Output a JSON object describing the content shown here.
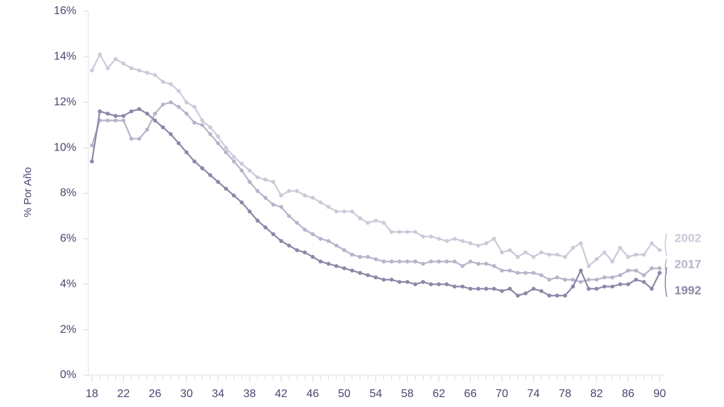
{
  "chart_data": {
    "type": "line",
    "ylabel": "% Por Año",
    "xlabel": "",
    "xlim": [
      18,
      90
    ],
    "ylim": [
      0,
      16
    ],
    "x_ticks": [
      18,
      22,
      26,
      30,
      34,
      38,
      42,
      46,
      50,
      54,
      58,
      62,
      66,
      70,
      74,
      78,
      82,
      86,
      90
    ],
    "y_ticks": [
      0,
      2,
      4,
      6,
      8,
      10,
      12,
      14,
      16
    ],
    "y_tick_labels": [
      "0%",
      "2%",
      "4%",
      "6%",
      "8%",
      "10%",
      "12%",
      "14%",
      "16%"
    ],
    "grid": false,
    "legend": "direct labels at right end of lines",
    "x": [
      18,
      19,
      20,
      21,
      22,
      23,
      24,
      25,
      26,
      27,
      28,
      29,
      30,
      31,
      32,
      33,
      34,
      35,
      36,
      37,
      38,
      39,
      40,
      41,
      42,
      43,
      44,
      45,
      46,
      47,
      48,
      49,
      50,
      51,
      52,
      53,
      54,
      55,
      56,
      57,
      58,
      59,
      60,
      61,
      62,
      63,
      64,
      65,
      66,
      67,
      68,
      69,
      70,
      71,
      72,
      73,
      74,
      75,
      76,
      77,
      78,
      79,
      80,
      81,
      82,
      83,
      84,
      85,
      86,
      87,
      88,
      89,
      90
    ],
    "series": [
      {
        "name": "2002",
        "color": "#cdc9d9",
        "values": [
          13.4,
          14.1,
          13.5,
          13.9,
          13.7,
          13.5,
          13.4,
          13.3,
          13.2,
          12.9,
          12.8,
          12.5,
          12.0,
          11.8,
          11.2,
          10.9,
          10.5,
          10.0,
          9.6,
          9.3,
          9.0,
          8.7,
          8.6,
          8.5,
          7.9,
          8.1,
          8.1,
          7.9,
          7.8,
          7.6,
          7.4,
          7.2,
          7.2,
          7.2,
          6.9,
          6.7,
          6.8,
          6.7,
          6.3,
          6.3,
          6.3,
          6.3,
          6.1,
          6.1,
          6.0,
          5.9,
          6.0,
          5.9,
          5.8,
          5.7,
          5.8,
          6.0,
          5.4,
          5.5,
          5.2,
          5.4,
          5.2,
          5.4,
          5.3,
          5.3,
          5.2,
          5.6,
          5.8,
          4.8,
          5.1,
          5.4,
          5.0,
          5.6,
          5.2,
          5.3,
          5.3,
          5.8,
          5.5
        ]
      },
      {
        "name": "2017",
        "color": "#b8b3ca",
        "values": [
          10.1,
          11.2,
          11.2,
          11.2,
          11.2,
          10.4,
          10.4,
          10.8,
          11.5,
          11.9,
          12.0,
          11.8,
          11.5,
          11.1,
          11.0,
          10.6,
          10.2,
          9.8,
          9.4,
          9.0,
          8.5,
          8.1,
          7.8,
          7.5,
          7.4,
          7.0,
          6.7,
          6.4,
          6.2,
          6.0,
          5.9,
          5.7,
          5.5,
          5.3,
          5.2,
          5.2,
          5.1,
          5.0,
          5.0,
          5.0,
          5.0,
          5.0,
          4.9,
          5.0,
          5.0,
          5.0,
          5.0,
          4.8,
          5.0,
          4.9,
          4.9,
          4.8,
          4.6,
          4.6,
          4.5,
          4.5,
          4.5,
          4.4,
          4.2,
          4.3,
          4.2,
          4.2,
          4.1,
          4.2,
          4.2,
          4.3,
          4.3,
          4.4,
          4.6,
          4.6,
          4.4,
          4.7,
          4.7
        ]
      },
      {
        "name": "1992",
        "color": "#8c87a8",
        "values": [
          9.4,
          11.6,
          11.5,
          11.4,
          11.4,
          11.6,
          11.7,
          11.5,
          11.2,
          10.9,
          10.6,
          10.2,
          9.8,
          9.4,
          9.1,
          8.8,
          8.5,
          8.2,
          7.9,
          7.6,
          7.2,
          6.8,
          6.5,
          6.2,
          5.9,
          5.7,
          5.5,
          5.4,
          5.2,
          5.0,
          4.9,
          4.8,
          4.7,
          4.6,
          4.5,
          4.4,
          4.3,
          4.2,
          4.2,
          4.1,
          4.1,
          4.0,
          4.1,
          4.0,
          4.0,
          4.0,
          3.9,
          3.9,
          3.8,
          3.8,
          3.8,
          3.8,
          3.7,
          3.8,
          3.5,
          3.6,
          3.8,
          3.7,
          3.5,
          3.5,
          3.5,
          3.9,
          4.6,
          3.8,
          3.8,
          3.9,
          3.9,
          4.0,
          4.0,
          4.2,
          4.1,
          3.8,
          4.5
        ]
      }
    ]
  }
}
